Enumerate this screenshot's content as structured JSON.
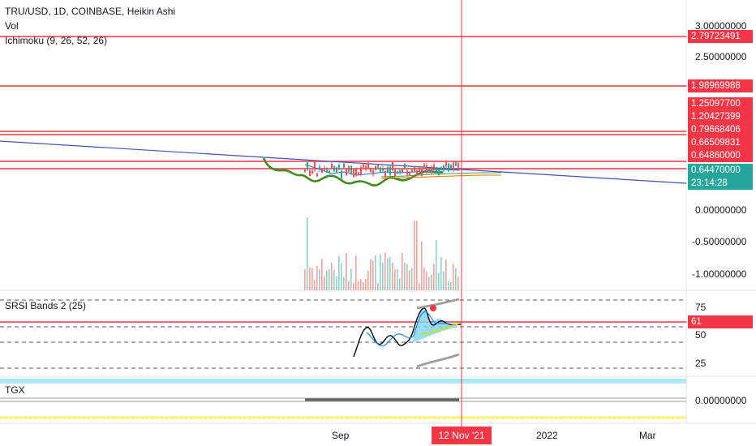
{
  "legend": {
    "title": "TRU/USD, 1D, COINBASE, Heikin Ashi",
    "volume": "Vol",
    "ichimoku": "Ichimoku (9, 26, 52, 26)",
    "srsi": "SRSI Bands 2 (25)",
    "tgx": "TGX"
  },
  "price_axis": {
    "ticks": [
      "3.00000000",
      "2.50000000",
      "0.00000000",
      "-0.50000000",
      "-1.00000000"
    ],
    "tags": [
      {
        "text": "2.79723491",
        "color": "#f23645"
      },
      {
        "text": "1.98969988",
        "color": "#f23645"
      },
      {
        "text": "1.25097700",
        "color": "#f23645"
      },
      {
        "text": "1.20427399",
        "color": "#f23645"
      },
      {
        "text": "0.79668406",
        "color": "#f23645"
      },
      {
        "text": "0.66509831",
        "color": "#f23645"
      },
      {
        "text": "0.64860000",
        "color": "#f23645"
      },
      {
        "text": "0.64470000",
        "color": "#26a69a"
      },
      {
        "text": "23:14:28",
        "color": "#26a69a"
      }
    ]
  },
  "srsi_axis": {
    "ticks": [
      "75",
      "50",
      "25"
    ],
    "tag": {
      "text": "61",
      "color": "#f23645"
    }
  },
  "tgx_axis": {
    "ticks": [
      "0.00000000"
    ]
  },
  "time_axis": {
    "labels": [
      "Sep",
      "2022",
      "Mar"
    ],
    "cursor_label": "12 Nov '21"
  },
  "chart_data": {
    "type": "line",
    "symbol": "TRU/USD",
    "interval": "1D",
    "exchange": "COINBASE",
    "candle_style": "Heikin Ashi",
    "horizontal_levels": [
      2.79723491,
      1.98969988,
      1.250977,
      1.20427399,
      0.79668406,
      0.66509831,
      0.6486,
      0.6447
    ],
    "last_price": 0.6447,
    "countdown": "23:14:28",
    "colors": {
      "level": "#f23645",
      "trendline": "#3f51b5",
      "lagging_span": "#3f8c1c",
      "up": "#26a69a",
      "down": "#ef5350",
      "cursor": "#f23645"
    },
    "price_ticks": [
      3.0,
      2.5,
      0.0,
      -0.5,
      -1.0
    ],
    "srsi": {
      "title": "SRSI Bands 2 (25)",
      "ticks": [
        75,
        50,
        25
      ],
      "current": 61
    },
    "tgx": {
      "title": "TGX",
      "ticks": [
        0.0
      ]
    },
    "cursor_date": "12 Nov '21"
  }
}
